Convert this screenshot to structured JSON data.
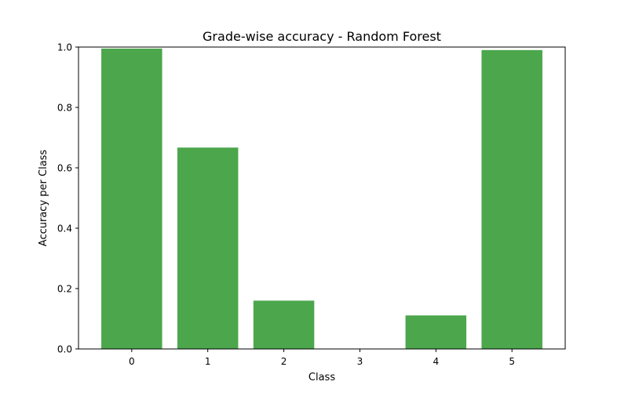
{
  "chart_data": {
    "type": "bar",
    "title": "Grade-wise accuracy - Random Forest",
    "xlabel": "Class",
    "ylabel": "Accuracy per Class",
    "categories": [
      "0",
      "1",
      "2",
      "3",
      "4",
      "5"
    ],
    "values": [
      0.995,
      0.667,
      0.16,
      0.0,
      0.111,
      0.99
    ],
    "ylim": [
      0.0,
      1.0
    ],
    "yticks": [
      0.0,
      0.2,
      0.4,
      0.6,
      0.8,
      1.0
    ],
    "ytick_labels": [
      "0.0",
      "0.2",
      "0.4",
      "0.6",
      "0.8",
      "1.0"
    ],
    "bar_color": "#4ca64c",
    "grid": false,
    "legend": "none"
  }
}
